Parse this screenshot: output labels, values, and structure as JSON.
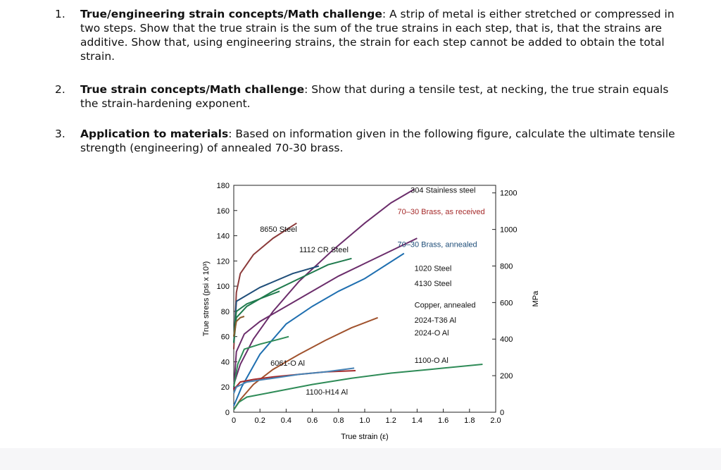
{
  "problems": [
    {
      "number": "1.",
      "title": "True/engineering strain concepts/Math challenge",
      "text": ": A strip of metal is either stretched or compressed in two steps. Show that the true strain is the sum of the true strains in each step, that is, that the strains are additive. Show that, using engineering strains, the strain for each step cannot be added to obtain the total strain."
    },
    {
      "number": "2.",
      "title": "True strain concepts/Math challenge",
      "text": ": Show that during a tensile test, at necking, the true strain equals the strain-hardening exponent."
    },
    {
      "number": "3.",
      "title": "Application to materials",
      "text": ": Based on information given in the following figure, calculate the ultimate tensile strength (engineering) of annealed 70-30 brass."
    }
  ],
  "chart_data": {
    "type": "line",
    "xlabel": "True strain (ε)",
    "ylabel": "True stress (psi x 10³)",
    "ylabel_right": "MPa",
    "xlim": [
      0,
      2.0
    ],
    "ylim": [
      0,
      180
    ],
    "x_ticks": [
      "0",
      "0.2",
      "0.4",
      "0.6",
      "0.8",
      "1.0",
      "1.2",
      "1.4",
      "1.6",
      "1.8",
      "2.0"
    ],
    "y_ticks": [
      "0",
      "20",
      "40",
      "60",
      "80",
      "100",
      "120",
      "140",
      "160",
      "180"
    ],
    "y2_ticks": [
      {
        "label": "0",
        "value": 0
      },
      {
        "label": "200",
        "value": 29
      },
      {
        "label": "400",
        "value": 58
      },
      {
        "label": "600",
        "value": 87
      },
      {
        "label": "800",
        "value": 116
      },
      {
        "label": "1000",
        "value": 145
      },
      {
        "label": "1200",
        "value": 174
      }
    ],
    "series": [
      {
        "name": "304 Stainless steel",
        "color": "#6b2d6b",
        "points": [
          [
            0,
            22
          ],
          [
            0.05,
            38
          ],
          [
            0.15,
            58
          ],
          [
            0.3,
            80
          ],
          [
            0.5,
            104
          ],
          [
            0.75,
            128
          ],
          [
            1.0,
            150
          ],
          [
            1.2,
            166
          ],
          [
            1.38,
            177
          ]
        ]
      },
      {
        "name": "70–30 Brass, as received",
        "color": "#6b2d6b",
        "points": [
          [
            0,
            18
          ],
          [
            0.02,
            48
          ],
          [
            0.08,
            62
          ],
          [
            0.2,
            72
          ],
          [
            0.4,
            84
          ],
          [
            0.6,
            96
          ],
          [
            0.8,
            108
          ],
          [
            1.0,
            118
          ],
          [
            1.2,
            128
          ],
          [
            1.4,
            138
          ]
        ]
      },
      {
        "name": "8650 Steel",
        "color": "#8b3a3a",
        "points": [
          [
            0,
            50
          ],
          [
            0.02,
            95
          ],
          [
            0.05,
            110
          ],
          [
            0.15,
            125
          ],
          [
            0.3,
            138
          ],
          [
            0.48,
            150
          ]
        ]
      },
      {
        "name": "1112 CR Steel",
        "color": "#1f4e79",
        "points": [
          [
            0,
            55
          ],
          [
            0.02,
            88
          ],
          [
            0.2,
            99
          ],
          [
            0.45,
            110
          ],
          [
            0.65,
            116
          ]
        ]
      },
      {
        "name": "70–30 Brass, annealed",
        "color": "#1f6fb0",
        "points": [
          [
            0,
            5
          ],
          [
            0.06,
            20
          ],
          [
            0.2,
            46
          ],
          [
            0.4,
            70
          ],
          [
            0.6,
            84
          ],
          [
            0.8,
            96
          ],
          [
            1.0,
            106
          ],
          [
            1.15,
            116
          ],
          [
            1.3,
            126
          ]
        ]
      },
      {
        "name": "1020 Steel",
        "color": "#1f7a4d",
        "points": [
          [
            0,
            55
          ],
          [
            0.02,
            75
          ],
          [
            0.1,
            84
          ],
          [
            0.3,
            96
          ],
          [
            0.5,
            106
          ],
          [
            0.72,
            117
          ],
          [
            0.9,
            122
          ]
        ]
      },
      {
        "name": "4130 Steel",
        "color": "#1f7a4d",
        "points": [
          [
            0,
            60
          ],
          [
            0.02,
            80
          ],
          [
            0.1,
            86
          ],
          [
            0.2,
            90
          ],
          [
            0.35,
            96
          ]
        ]
      },
      {
        "name": "Copper, annealed",
        "color": "#a0522d",
        "points": [
          [
            0,
            2
          ],
          [
            0.05,
            10
          ],
          [
            0.15,
            22
          ],
          [
            0.3,
            34
          ],
          [
            0.5,
            46
          ],
          [
            0.7,
            57
          ],
          [
            0.9,
            67
          ],
          [
            1.1,
            75
          ]
        ]
      },
      {
        "name": "2024-T36 Al",
        "color": "#8b5a2b",
        "points": [
          [
            0,
            60
          ],
          [
            0.02,
            72
          ],
          [
            0.05,
            75
          ],
          [
            0.08,
            76
          ]
        ]
      },
      {
        "name": "2024-O Al",
        "color": "#2e8b57",
        "points": [
          [
            0,
            20
          ],
          [
            0.03,
            38
          ],
          [
            0.08,
            50
          ],
          [
            0.2,
            54
          ],
          [
            0.35,
            58
          ],
          [
            0.42,
            60
          ]
        ]
      },
      {
        "name": "6061-O Al",
        "color": "#a52a2a",
        "points": [
          [
            0,
            18
          ],
          [
            0.05,
            24
          ],
          [
            0.15,
            26
          ],
          [
            0.3,
            28
          ],
          [
            0.5,
            30
          ],
          [
            0.7,
            32
          ],
          [
            0.93,
            33
          ]
        ]
      },
      {
        "name": "1100-O Al",
        "color": "#2e8b57",
        "points": [
          [
            0,
            2
          ],
          [
            0.04,
            8
          ],
          [
            0.1,
            12
          ],
          [
            0.3,
            16
          ],
          [
            0.6,
            22
          ],
          [
            0.9,
            27
          ],
          [
            1.2,
            31
          ],
          [
            1.5,
            34
          ],
          [
            1.9,
            38
          ]
        ]
      },
      {
        "name": "1100-H14 Al",
        "color": "#4682b4",
        "points": [
          [
            0,
            15
          ],
          [
            0.02,
            20
          ],
          [
            0.1,
            24
          ],
          [
            0.3,
            27
          ],
          [
            0.5,
            30
          ],
          [
            0.7,
            32
          ],
          [
            0.92,
            35
          ]
        ]
      }
    ],
    "labels": [
      {
        "text": "304 Stainless steel",
        "x": 1.35,
        "y": 174,
        "color": "#111"
      },
      {
        "text": "70–30 Brass, as received",
        "x": 1.25,
        "y": 157,
        "color": "#a52a2a"
      },
      {
        "text": "8650 Steel",
        "x": 0.2,
        "y": 143,
        "color": "#111"
      },
      {
        "text": "1112 CR Steel",
        "x": 0.5,
        "y": 127,
        "color": "#111"
      },
      {
        "text": "70–30 Brass, annealed",
        "x": 1.25,
        "y": 131,
        "color": "#1f4e79"
      },
      {
        "text": "1020 Steel",
        "x": 1.38,
        "y": 112,
        "color": "#111"
      },
      {
        "text": "4130 Steel",
        "x": 1.38,
        "y": 100,
        "color": "#111"
      },
      {
        "text": "Copper, annealed",
        "x": 1.38,
        "y": 83,
        "color": "#111"
      },
      {
        "text": "2024-T36 Al",
        "x": 1.38,
        "y": 71,
        "color": "#111"
      },
      {
        "text": "2024-O Al",
        "x": 1.38,
        "y": 61,
        "color": "#111"
      },
      {
        "text": "6061-O Al",
        "x": 0.28,
        "y": 37,
        "color": "#111"
      },
      {
        "text": "1100-O Al",
        "x": 1.38,
        "y": 39,
        "color": "#111"
      },
      {
        "text": "1100-H14 Al",
        "x": 0.55,
        "y": 14,
        "color": "#111"
      }
    ]
  }
}
